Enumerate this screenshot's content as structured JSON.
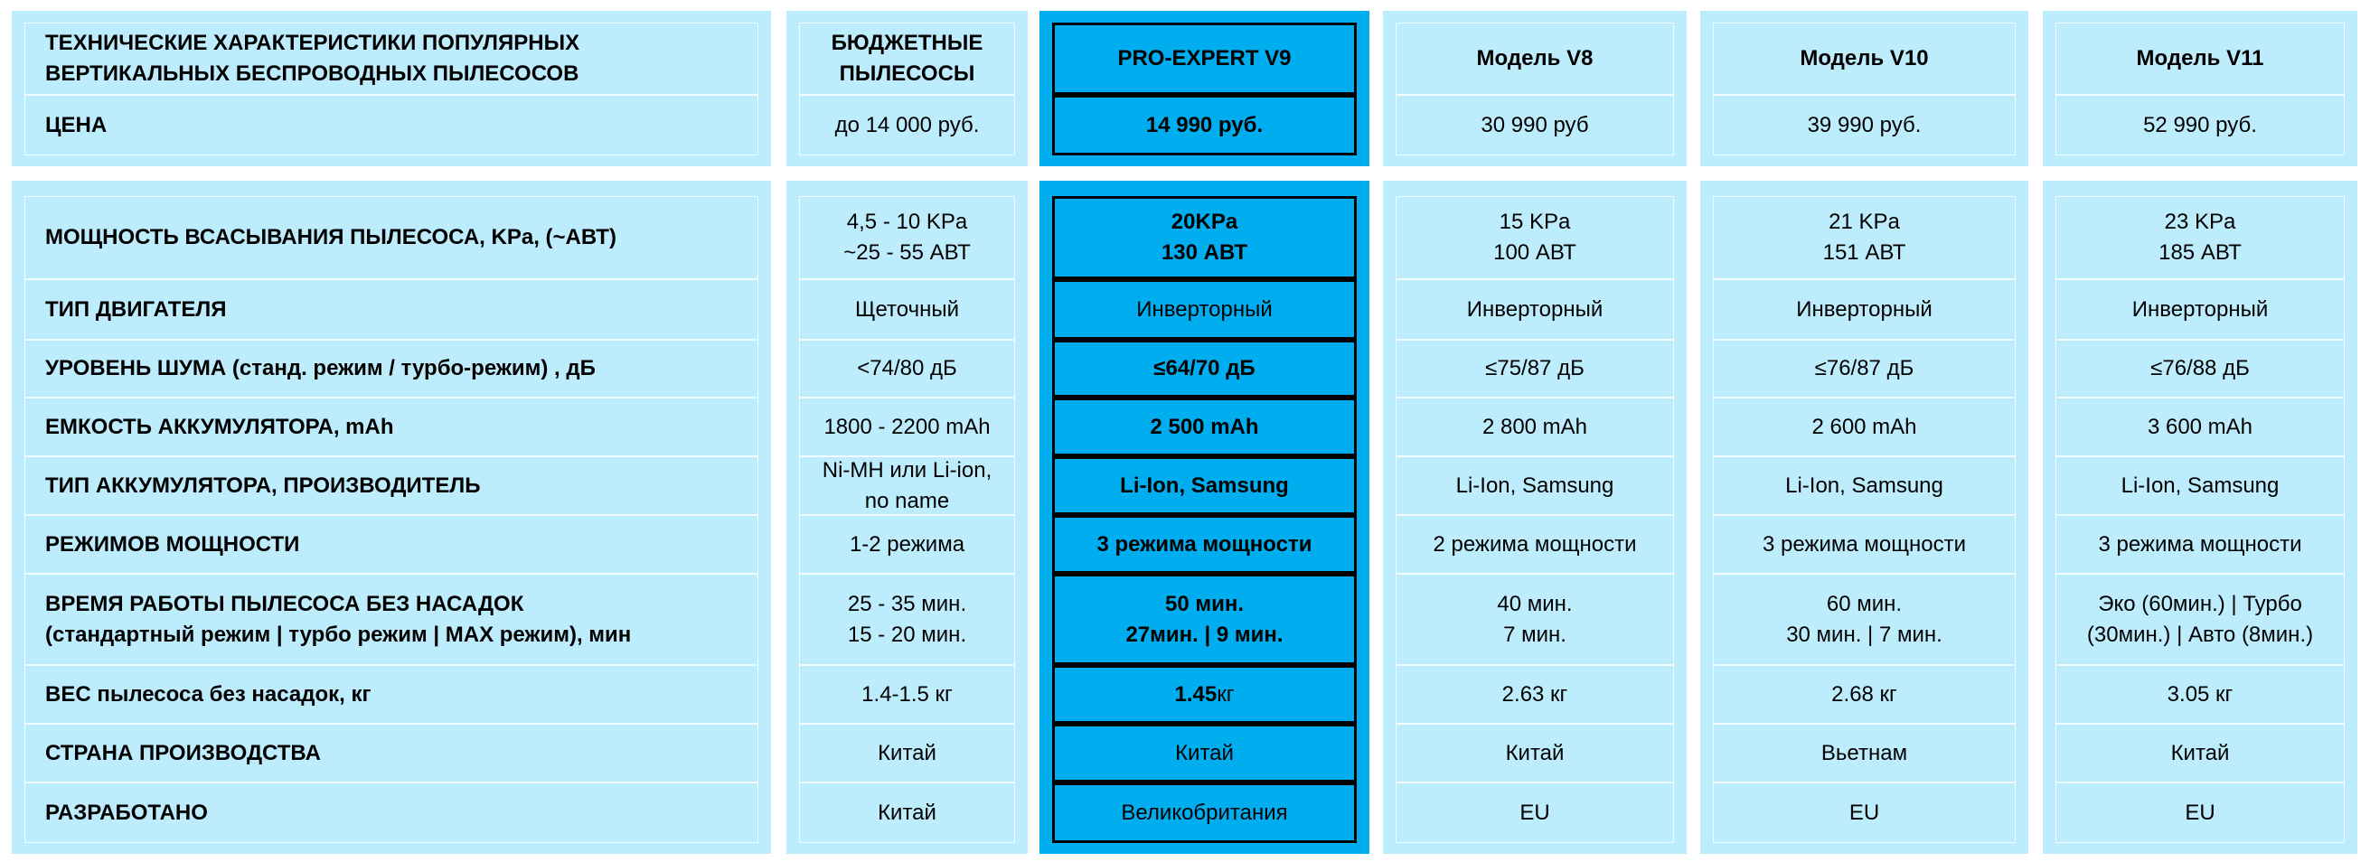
{
  "colors": {
    "panel": "#bdedfd",
    "highlight": "#00aeef",
    "border_highlight": "#000000"
  },
  "header": {
    "title": "ТЕХНИЧЕСКИЕ ХАРАКТЕРИСТИКИ ПОПУЛЯРНЫХ\nВЕРТИКАЛЬНЫХ БЕСПРОВОДНЫХ ПЫЛЕСОСОВ",
    "price_label": "ЦЕНА"
  },
  "columns": [
    {
      "name": "БЮДЖЕТНЫЕ\nПЫЛЕСОСЫ",
      "price": "до 14 000 руб.",
      "highlight": false
    },
    {
      "name": "PRO-EXPERT V9",
      "price": "14 990 руб.",
      "highlight": true
    },
    {
      "name": "Модель V8",
      "price": "30 990 руб",
      "highlight": false
    },
    {
      "name": "Модель V10",
      "price": "39 990 руб.",
      "highlight": false
    },
    {
      "name": "Модель V11",
      "price": "52 990 руб.",
      "highlight": false
    }
  ],
  "rows": [
    {
      "label": "МОЩНОСТЬ ВСАСЫВАНИЯ ПЫЛЕСОСА, KPa, (~АВТ)",
      "values": [
        "4,5 - 10 KPa\n~25 - 55 АВТ",
        "20KPa\n130 АВТ",
        "15 KPa\n100 АВТ",
        "21 KPa\n151 АВТ",
        "23 KPa\n185 АВТ"
      ],
      "pro_bold": true
    },
    {
      "label": "ТИП ДВИГАТЕЛЯ",
      "values": [
        "Щеточный",
        "Инверторный",
        "Инверторный",
        "Инверторный",
        "Инверторный"
      ],
      "pro_bold": false
    },
    {
      "label": "УРОВЕНЬ ШУМА (станд. режим / турбо-режим) , дБ",
      "values": [
        "<74/80 дБ",
        "≤64/70 дБ",
        "≤75/87 дБ",
        "≤76/87 дБ",
        "≤76/88 дБ"
      ],
      "pro_bold": true
    },
    {
      "label": "ЕМКОСТЬ АККУМУЛЯТОРА, mAh",
      "values": [
        "1800 - 2200 mAh",
        "2 500 mAh",
        "2 800 mAh",
        "2 600 mAh",
        "3 600 mAh"
      ],
      "pro_bold": true
    },
    {
      "label": "ТИП АККУМУЛЯТОРА, ПРОИЗВОДИТЕЛЬ",
      "values": [
        "Ni-MH или Li-ion,\nno name",
        "Li-Ion, Samsung",
        "Li-Ion, Samsung",
        "Li-Ion, Samsung",
        "Li-Ion, Samsung"
      ],
      "pro_bold": true
    },
    {
      "label": "РЕЖИМОВ МОЩНОСТИ",
      "values": [
        "1-2 режима",
        "3 режима мощности",
        "2 режима мощности",
        "3 режима мощности",
        "3 режима мощности"
      ],
      "pro_bold": true
    },
    {
      "label": "ВРЕМЯ РАБОТЫ ПЫЛЕСОСА БЕЗ НАСАДОК\n(стандартный  режим | турбо режим | MAX режим), мин",
      "values": [
        "25 - 35 мин.\n15 - 20 мин.",
        "50 мин.\n27мин. | 9 мин.",
        "40 мин.\n7 мин.",
        "60 мин.\n30 мин. | 7 мин.",
        "Эко (60мин.) |  Турбо\n(30мин.) | Авто (8мин.)"
      ],
      "pro_bold": true
    },
    {
      "label": "ВЕС пылесоса без насадок, кг",
      "values": [
        "1.4-1.5 кг",
        "1.45",
        "2.63 кг",
        "2.68 кг",
        "3.05 кг"
      ],
      "pro_bold": true,
      "pro_suffix": " кг"
    },
    {
      "label": "СТРАНА ПРОИЗВОДСТВА",
      "values": [
        "Китай",
        "Китай",
        "Китай",
        "Вьетнам",
        "Китай"
      ],
      "pro_bold": false
    },
    {
      "label": "РАЗРАБОТАНО",
      "values": [
        "Китай",
        "Великобритания",
        "EU",
        "EU",
        "EU"
      ],
      "pro_bold": false
    }
  ]
}
